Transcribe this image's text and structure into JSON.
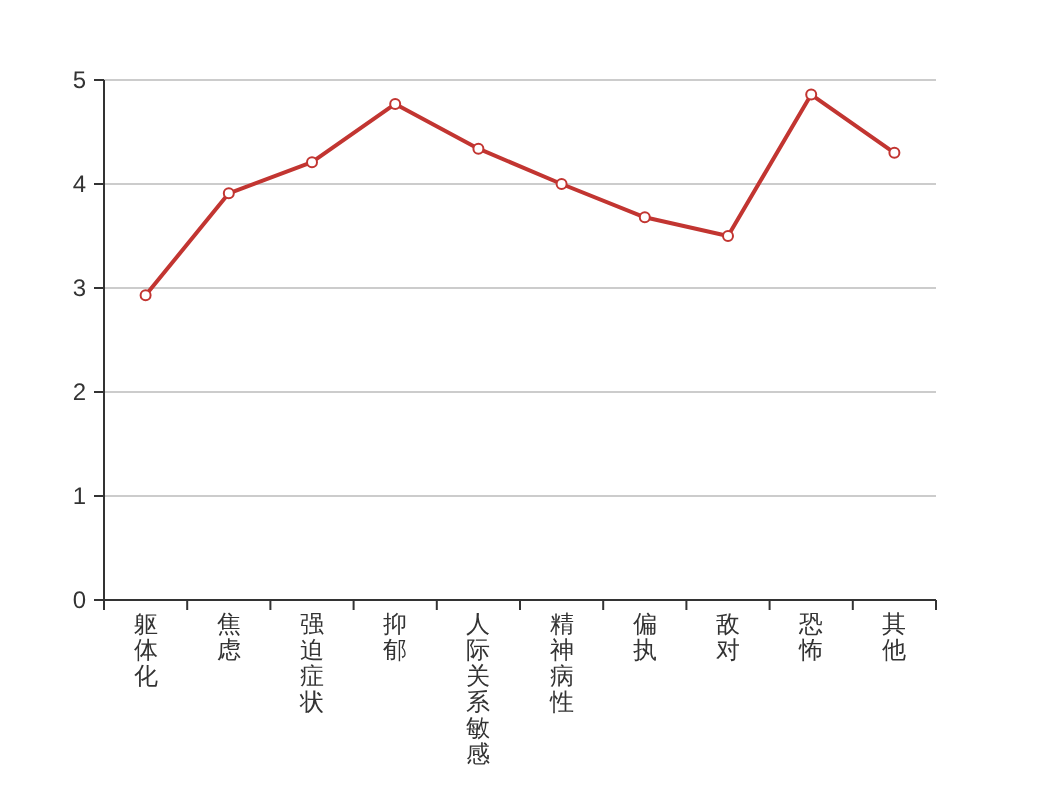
{
  "chart_data": {
    "type": "line",
    "categories": [
      "躯体化",
      "焦虑",
      "强迫症状",
      "抑郁",
      "人际关系敏感",
      "精神病性",
      "偏执",
      "敌对",
      "恐怖",
      "其他"
    ],
    "series": [
      {
        "color": "#c23531",
        "values": [
          2.93,
          3.91,
          4.21,
          4.77,
          4.34,
          4.0,
          3.68,
          3.5,
          4.86,
          4.3
        ]
      }
    ],
    "ylim": [
      0,
      5
    ],
    "yticks": [
      0,
      1,
      2,
      3,
      4,
      5
    ],
    "grid": "y",
    "marker": "circle",
    "line_style": "solid"
  }
}
